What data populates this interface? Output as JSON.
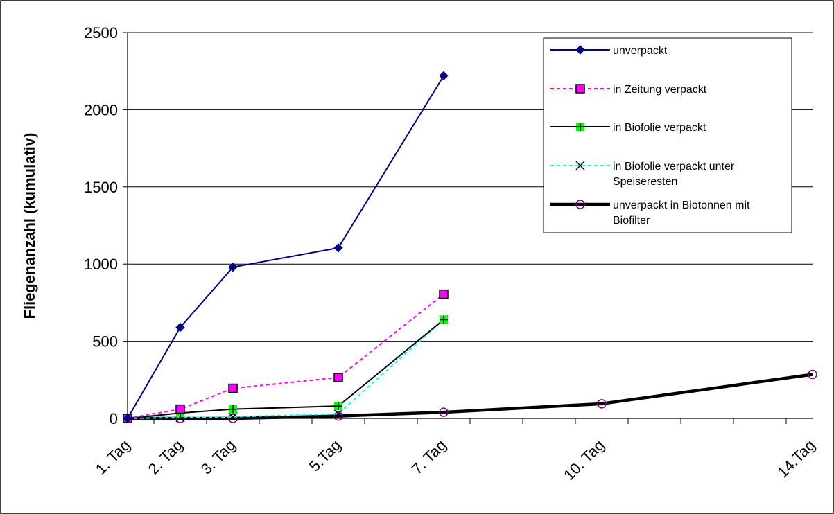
{
  "chart_data": {
    "type": "line",
    "title": "",
    "xlabel": "",
    "ylabel": "Fliegenanzahl (kumulativ)",
    "x_days": [
      1,
      2,
      3,
      4,
      5,
      6,
      7,
      8,
      9,
      10,
      11,
      12,
      13,
      14
    ],
    "category_labels": [
      {
        "day": 1,
        "label": "1. Tag"
      },
      {
        "day": 2,
        "label": "2. Tag"
      },
      {
        "day": 3,
        "label": "3. Tag"
      },
      {
        "day": 5,
        "label": "5.Tag"
      },
      {
        "day": 7,
        "label": "7. Tag"
      },
      {
        "day": 10,
        "label": "10. Tag"
      },
      {
        "day": 14,
        "label": "14.Tag"
      }
    ],
    "ylim": [
      0,
      2500
    ],
    "yticks": [
      0,
      500,
      1000,
      1500,
      2000,
      2500
    ],
    "grid": "horizontal",
    "legend_position": "top-right",
    "series": [
      {
        "name": "unverpackt",
        "color": "#000080",
        "line": "solid",
        "marker": "diamond",
        "points": [
          {
            "day": 1,
            "value": 0
          },
          {
            "day": 2,
            "value": 590
          },
          {
            "day": 3,
            "value": 980
          },
          {
            "day": 5,
            "value": 1105
          },
          {
            "day": 7,
            "value": 2220
          }
        ]
      },
      {
        "name": "in Zeitung verpackt",
        "color": "#ff00ff",
        "line": "dashed",
        "marker": "square",
        "points": [
          {
            "day": 1,
            "value": 0
          },
          {
            "day": 2,
            "value": 60
          },
          {
            "day": 3,
            "value": 195
          },
          {
            "day": 5,
            "value": 265
          },
          {
            "day": 7,
            "value": 805
          }
        ]
      },
      {
        "name": "in Biofolie verpackt",
        "color": "#000000",
        "marker_color": "#00ff00",
        "line": "solid",
        "marker": "plus",
        "points": [
          {
            "day": 1,
            "value": 0
          },
          {
            "day": 2,
            "value": 35
          },
          {
            "day": 3,
            "value": 60
          },
          {
            "day": 5,
            "value": 80
          },
          {
            "day": 7,
            "value": 640
          }
        ]
      },
      {
        "name": "in Biofolie verpackt unter Speiseresten",
        "color": "#00ffff",
        "marker_color": "#000000",
        "line": "dashed",
        "marker": "x",
        "points": [
          {
            "day": 1,
            "value": 0
          },
          {
            "day": 2,
            "value": 5
          },
          {
            "day": 3,
            "value": 10
          },
          {
            "day": 5,
            "value": 30
          },
          {
            "day": 7,
            "value": 640
          }
        ]
      },
      {
        "name": "unverpackt in Biotonnen mit Biofilter",
        "color": "#000000",
        "marker_color": "#800080",
        "line": "thick",
        "marker": "circle",
        "points": [
          {
            "day": 1,
            "value": 0
          },
          {
            "day": 2,
            "value": 0
          },
          {
            "day": 3,
            "value": 0
          },
          {
            "day": 5,
            "value": 15
          },
          {
            "day": 7,
            "value": 40
          },
          {
            "day": 10,
            "value": 95
          },
          {
            "day": 14,
            "value": 285
          }
        ]
      }
    ]
  }
}
